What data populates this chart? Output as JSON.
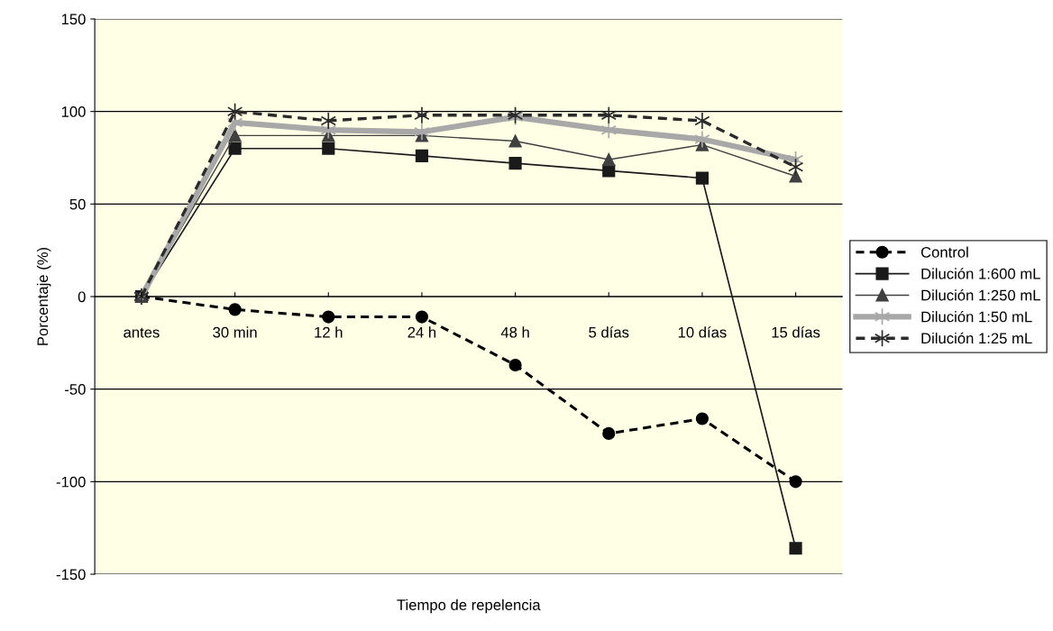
{
  "chart_data": {
    "type": "line",
    "xlabel": "Tiempo de repelencia",
    "ylabel": "Porcentaje (%)",
    "categories": [
      "antes",
      "30 min",
      "12 h",
      "24 h",
      "48 h",
      "5 días",
      "10 días",
      "15 días"
    ],
    "ylim": [
      -150,
      150
    ],
    "yticks": [
      -150,
      -100,
      -50,
      0,
      50,
      100,
      150
    ],
    "grid": "y",
    "legend": "right",
    "series": [
      {
        "name": "Control",
        "color": "#000000",
        "marker": "circle",
        "line_style": "dashed",
        "values": [
          0,
          -7,
          -11,
          -11,
          -37,
          -74,
          -66,
          -100
        ]
      },
      {
        "name": "Dilución 1:600 mL",
        "color": "#1a1a1a",
        "marker": "square",
        "line_style": "solid",
        "values": [
          0,
          80,
          80,
          76,
          72,
          68,
          64,
          -136
        ]
      },
      {
        "name": "Dilución 1:250 mL",
        "color": "#404040",
        "marker": "triangle",
        "line_style": "solid",
        "values": [
          0,
          87,
          87,
          87,
          84,
          74,
          82,
          65
        ]
      },
      {
        "name": "Dilución 1:50 mL",
        "color": "#a8a8a8",
        "marker": "cross",
        "line_style": "solid",
        "values": [
          0,
          94,
          90,
          89,
          97,
          90,
          85,
          74
        ]
      },
      {
        "name": "Dilución 1:25 mL",
        "color": "#2b2b2b",
        "marker": "cross",
        "line_style": "dashed",
        "values": [
          0,
          100,
          95,
          98,
          98,
          98,
          95,
          70
        ]
      }
    ]
  }
}
